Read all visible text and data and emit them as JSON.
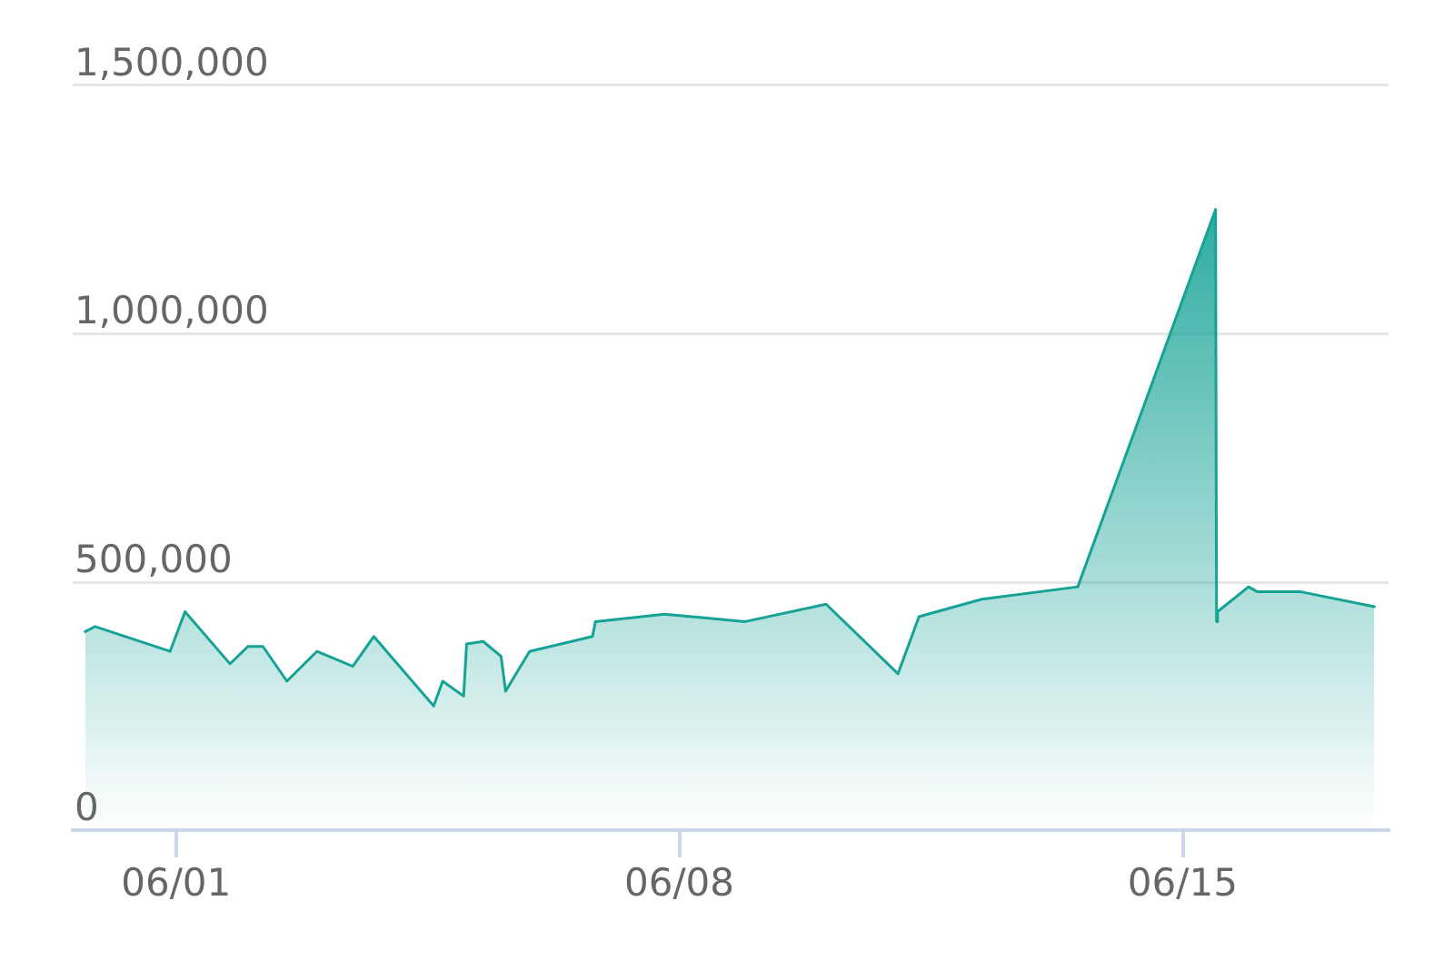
{
  "chart_data": {
    "type": "area",
    "x": [
      "--05-30T17:40",
      "--05-30T21:00",
      "--05-31T22:00",
      "--06-01T03:00",
      "--06-01T18:00",
      "--06-02T00:00",
      "--06-02T05:00",
      "--06-02T13:00",
      "--06-02T23:00",
      "--06-03T11:00",
      "--06-03T18:00",
      "--06-04T14:00",
      "--06-04T17:00",
      "--06-05T00:00",
      "--06-05T01:00",
      "--06-05T06:30",
      "--06-05T12:30",
      "--06-05T14:00",
      "--06-05T22:00",
      "--06-06T19:00",
      "--06-06T20:00",
      "--06-07T19:00",
      "--06-08T22:00",
      "--06-10T01:00",
      "--06-11T01:00",
      "--06-11T08:00",
      "--06-12T05:00",
      "--06-13T13:00",
      "--06-15T11:00",
      "--06-15T11:20",
      "--06-15T11:40",
      "--06-15T22:00",
      "--06-16T01:00",
      "--06-16T15:30",
      "--06-17T16:00"
    ],
    "values": [
      400000,
      410000,
      360000,
      440000,
      335000,
      370000,
      370000,
      300000,
      360000,
      330000,
      390000,
      250000,
      300000,
      270000,
      375000,
      380000,
      350000,
      280000,
      360000,
      390000,
      420000,
      435000,
      420000,
      455000,
      315000,
      430000,
      465000,
      490000,
      1250000,
      420000,
      440000,
      490000,
      480000,
      480000,
      450000
    ],
    "color": "#16a396",
    "xlim": [
      "--05-30T13:30",
      "--06-17T20:45"
    ],
    "xticks": [
      {
        "value": "--06-01",
        "label": "06/01"
      },
      {
        "value": "--06-08",
        "label": "06/08"
      },
      {
        "value": "--06-15",
        "label": "06/15"
      }
    ],
    "ylim": [
      0,
      1500000
    ],
    "yticks": [
      {
        "value": 0,
        "label": "0"
      },
      {
        "value": 500000,
        "label": "500,000"
      },
      {
        "value": 1000000,
        "label": "1,000,000"
      },
      {
        "value": 1500000,
        "label": "1,500,000"
      }
    ],
    "grid": "y"
  }
}
